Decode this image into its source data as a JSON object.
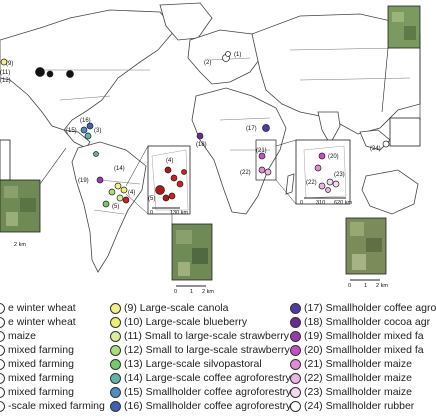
{
  "map": {
    "site_labels": [
      {
        "id": "s9",
        "text": "(9)"
      },
      {
        "id": "s11",
        "text": "(11)"
      },
      {
        "id": "s12",
        "text": "(12)"
      },
      {
        "id": "s2",
        "text": "(2)"
      },
      {
        "id": "s1",
        "text": "(1)"
      },
      {
        "id": "s3",
        "text": "(3)"
      },
      {
        "id": "s15",
        "text": "(15)"
      },
      {
        "id": "s16",
        "text": "(16)"
      },
      {
        "id": "s14",
        "text": "(14)"
      },
      {
        "id": "s19",
        "text": "(19)"
      },
      {
        "id": "s4a",
        "text": "(4)"
      },
      {
        "id": "s4b",
        "text": "(4)"
      },
      {
        "id": "s5a",
        "text": "(5)"
      },
      {
        "id": "s5b",
        "text": "(5)"
      },
      {
        "id": "s17",
        "text": "(17)"
      },
      {
        "id": "s18",
        "text": "(18)"
      },
      {
        "id": "s21",
        "text": "(21)"
      },
      {
        "id": "s20",
        "text": "(20)"
      },
      {
        "id": "s22a",
        "text": "(22)"
      },
      {
        "id": "s22b",
        "text": "(22)"
      },
      {
        "id": "s23",
        "text": "(23)"
      },
      {
        "id": "s24",
        "text": "(24)"
      }
    ],
    "scale_bars": [
      {
        "id": "sb_sa_0",
        "text": "0"
      },
      {
        "id": "sb_sa_130",
        "text": "130 km"
      },
      {
        "id": "sb_af_0",
        "text": "0"
      },
      {
        "id": "sb_af_310",
        "text": "310"
      },
      {
        "id": "sb_af_620",
        "text": "620 km"
      },
      {
        "id": "sb_left",
        "text": "2 km"
      },
      {
        "id": "sb_mid_0",
        "text": "0"
      },
      {
        "id": "sb_mid_1",
        "text": "1"
      },
      {
        "id": "sb_mid_2",
        "text": "2 km"
      },
      {
        "id": "sb_af2_0",
        "text": "0"
      },
      {
        "id": "sb_af2_1",
        "text": "1"
      },
      {
        "id": "sb_af2_2",
        "text": "2 km"
      }
    ],
    "colors": {
      "land": "#ffffff",
      "ocean": "#ffffff",
      "border": "#444444",
      "inset_frame": "#222222",
      "photo_green": "#6f8a55"
    }
  },
  "legend": [
    {
      "label": "e winter wheat",
      "color": "#ffffff"
    },
    {
      "label": "e winter wheat",
      "color": "#ffffff"
    },
    {
      "label": "maize",
      "color": "#ffffff"
    },
    {
      "label": "mixed farming",
      "color": "#ffffff"
    },
    {
      "label": "mixed farming",
      "color": "#ffffff"
    },
    {
      "label": "mixed farming",
      "color": "#ffffff"
    },
    {
      "label": "mixed farming",
      "color": "#ffffff"
    },
    {
      "label": "-scale mixed farming",
      "color": "#ffffff"
    },
    {
      "label": "(9) Large-scale canola",
      "color": "#f3ef8a"
    },
    {
      "label": "(10) Large-scale blueberry",
      "color": "#ecf26f"
    },
    {
      "label": "(11) Small to large-scale strawberry",
      "color": "#d8ee9a"
    },
    {
      "label": "(12) Small to large-scale strawberry",
      "color": "#a8dd7a"
    },
    {
      "label": "(13) Large-scale silvopastoral",
      "color": "#76c86a"
    },
    {
      "label": "(14) Large-scale coffee agroforestry",
      "color": "#5fb6a8"
    },
    {
      "label": "(15) Smallholder coffee agroforestry",
      "color": "#4d8fc0"
    },
    {
      "label": "(16) Smallholder coffee agroforestry",
      "color": "#3c62b0"
    },
    {
      "label": "(17) Smallholder coffee agro",
      "color": "#4e3ca0"
    },
    {
      "label": "(18) Smallholder cocoa agr",
      "color": "#6a2a90"
    },
    {
      "label": "(19) Smallholder mixed fa",
      "color": "#9a3aa8"
    },
    {
      "label": "(20) Smallholder mixed fa",
      "color": "#c64ec4"
    },
    {
      "label": "(21) Smallholder maize",
      "color": "#e08ad8"
    },
    {
      "label": "(22) Smallholder maize",
      "color": "#eab6e6"
    },
    {
      "label": "(23) Smallholder maize",
      "color": "#f3d8f2"
    },
    {
      "label": "(24) Smallholder rubber",
      "color": "#ffffff"
    }
  ]
}
